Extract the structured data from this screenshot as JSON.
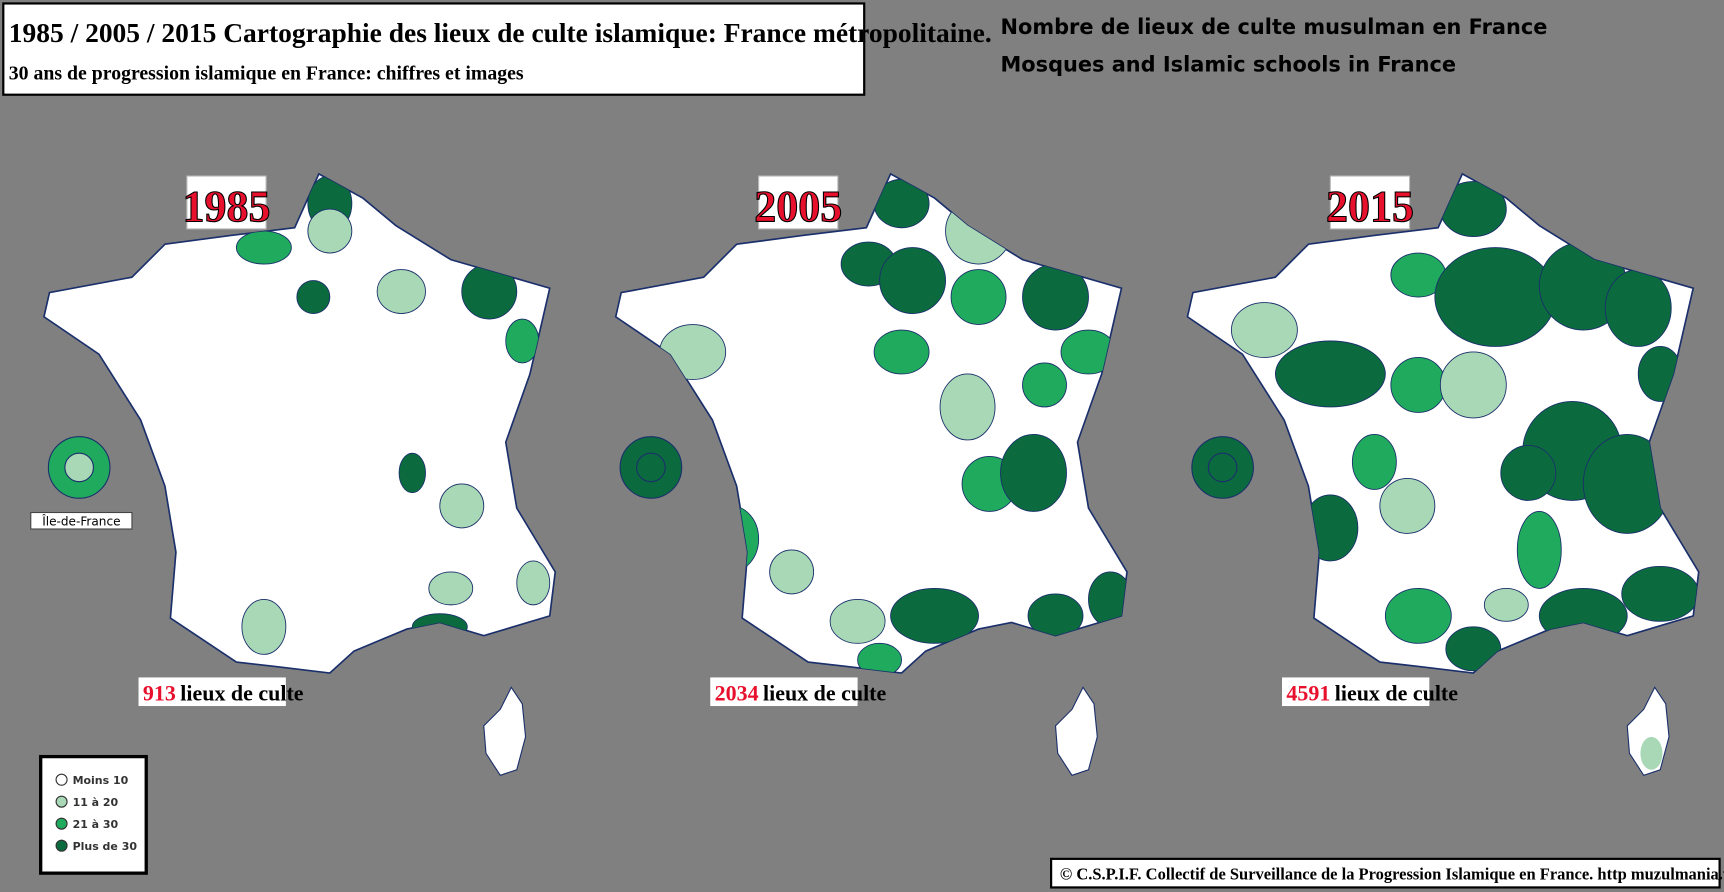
{
  "header": {
    "title": "1985 / 2005 / 2015  Cartographie des lieux de culte islamique: France métropolitaine.",
    "subtitle": "30 ans de progression islamique en France: chiffres et images"
  },
  "headings": [
    "Nombre de lieux de culte musulman en France",
    "Mosques and Islamic schools in France"
  ],
  "maps": [
    {
      "year": "1985",
      "count": 913
    },
    {
      "year": "2005",
      "count": 2034
    },
    {
      "year": "2015",
      "count": 4591
    }
  ],
  "count_unit": "lieux de culte",
  "inset_label": "Île-de-France",
  "legend": [
    {
      "label": "Moins 10",
      "color": "#ffffff"
    },
    {
      "label": "11 à 20",
      "color": "#a8d8b5"
    },
    {
      "label": "21 à 30",
      "color": "#1faa5e"
    },
    {
      "label": "Plus de 30",
      "color": "#0b6b3e"
    }
  ],
  "credit": "© C.S.P.I.F. Collectif de Surveillance de la Progression Islamique en France. http muzulmania.wordpress.com"
}
